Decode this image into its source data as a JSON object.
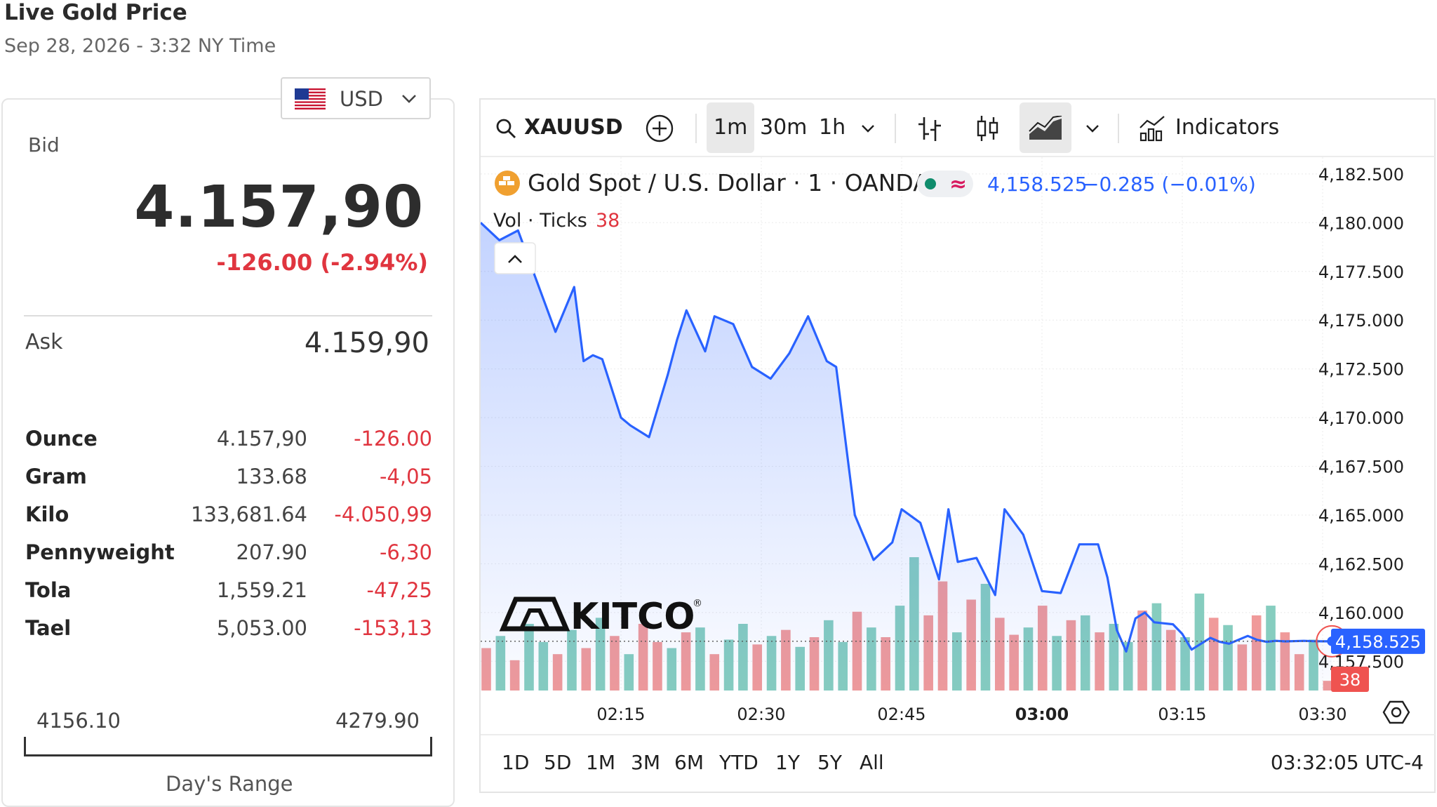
{
  "header": {
    "title": "Live Gold Price",
    "subtitle": "Sep 28, 2026 - 3:32 NY Time"
  },
  "currency": {
    "code": "USD",
    "flag_icon": "us-flag-icon"
  },
  "quote": {
    "bid_label": "Bid",
    "bid": "4.157,90",
    "change": "-126.00 (-2.94%)",
    "ask_label": "Ask",
    "ask": "4.159,90"
  },
  "units": [
    {
      "name": "Ounce",
      "price": "4.157,90",
      "change": "-126.00"
    },
    {
      "name": "Gram",
      "price": "133.68",
      "change": "-4,05"
    },
    {
      "name": "Kilo",
      "price": "133,681.64",
      "change": "-4.050,99"
    },
    {
      "name": "Pennyweight",
      "price": "207.90",
      "change": "-6,30"
    },
    {
      "name": "Tola",
      "price": "1,559.21",
      "change": "-47,25"
    },
    {
      "name": "Tael",
      "price": "5,053.00",
      "change": "-153,13"
    }
  ],
  "days_range": {
    "low": "4156.10",
    "high": "4279.90",
    "label": "Day's Range"
  },
  "toolbar": {
    "symbol": "XAUUSD",
    "intervals": [
      "1m",
      "30m",
      "1h"
    ],
    "active_interval": "1m",
    "indicators_label": "Indicators"
  },
  "legend": {
    "instrument": "Gold Spot / U.S. Dollar · 1 · OANDA",
    "last": "4,158.525",
    "change": "−0.285 (−0.01%)",
    "vol_label": "Vol · Ticks",
    "vol_value": "38"
  },
  "watermark": "KITCO",
  "bottom_bar": {
    "ranges": [
      "1D",
      "5D",
      "1M",
      "3M",
      "6M",
      "YTD",
      "1Y",
      "5Y",
      "All"
    ],
    "clock": "03:32:05 UTC-4"
  },
  "colors": {
    "up": "#86cdbf",
    "down": "#f09a9a",
    "line": "#2962ff",
    "negative": "#e0353f"
  },
  "chart_data": {
    "type": "line",
    "ylim": [
      4156.0,
      4183.0
    ],
    "y_ticks": [
      "4,182.500",
      "4,180.000",
      "4,177.500",
      "4,175.000",
      "4,172.500",
      "4,170.000",
      "4,167.500",
      "4,165.000",
      "4,162.500",
      "4,160.000",
      "4,157.500"
    ],
    "y_tick_values": [
      4182.5,
      4180.0,
      4177.5,
      4175.0,
      4172.5,
      4170.0,
      4167.5,
      4165.0,
      4162.5,
      4160.0,
      4157.5
    ],
    "x_ticks": [
      "02:15",
      "02:30",
      "02:45",
      "03:00",
      "03:15",
      "03:30"
    ],
    "x_tick_minutes": [
      15,
      30,
      45,
      60,
      75,
      90
    ],
    "last_price_label": "4,158.525",
    "last_price": 4158.525,
    "volume_label": "38",
    "x": [
      0,
      2,
      4,
      6,
      8,
      10,
      11,
      12,
      13,
      15,
      16,
      18,
      20,
      21,
      22,
      24,
      25,
      27,
      29,
      31,
      33,
      35,
      37,
      38,
      40,
      42,
      44,
      45,
      47,
      49,
      50,
      51,
      53,
      55,
      56,
      58,
      60,
      62,
      64,
      66,
      67,
      68,
      69,
      70,
      71,
      72,
      74,
      75,
      76,
      78,
      79,
      80,
      82,
      83,
      84,
      85,
      86,
      88,
      89,
      90,
      91
    ],
    "series": [
      {
        "values": [
          4180.0,
          4179.1,
          4179.6,
          4177.0,
          4174.4,
          4176.7,
          4172.9,
          4173.2,
          4173.0,
          4170.0,
          4169.6,
          4169.0,
          4172.2,
          4174.0,
          4175.5,
          4173.4,
          4175.2,
          4174.8,
          4172.6,
          4172.0,
          4173.3,
          4175.2,
          4172.9,
          4172.6,
          4165.0,
          4162.7,
          4163.6,
          4165.3,
          4164.6,
          4161.7,
          4165.3,
          4162.6,
          4162.8,
          4160.9,
          4165.3,
          4164.0,
          4161.1,
          4161.0,
          4163.5,
          4163.5,
          4161.8,
          4159.1,
          4158.0,
          4159.7,
          4160.0,
          4159.5,
          4159.4,
          4158.9,
          4158.1,
          4158.7,
          4158.5,
          4158.4,
          4158.8,
          4158.6,
          4158.5,
          4158.55,
          4158.52,
          4158.55,
          4158.53,
          4158.525,
          4158.525
        ]
      }
    ],
    "volume": [
      35,
      45,
      25,
      55,
      40,
      30,
      50,
      35,
      60,
      45,
      30,
      55,
      40,
      35,
      48,
      52,
      30,
      42,
      55,
      38,
      45,
      50,
      36,
      44,
      58,
      40,
      65,
      52,
      44,
      70,
      110,
      62,
      90,
      48,
      75,
      88,
      60,
      46,
      52,
      70,
      45,
      58,
      62,
      48,
      55,
      40,
      66,
      72,
      50,
      44,
      80,
      60,
      54,
      38,
      62,
      70,
      48,
      30,
      42,
      8,
      4
    ],
    "volume_up": [
      false,
      true,
      false,
      true,
      true,
      false,
      true,
      false,
      true,
      false,
      true,
      false,
      false,
      true,
      false,
      true,
      false,
      true,
      true,
      false,
      true,
      false,
      true,
      false,
      true,
      true,
      false,
      true,
      false,
      true,
      true,
      false,
      false,
      true,
      false,
      true,
      false,
      false,
      true,
      false,
      true,
      false,
      true,
      false,
      true,
      true,
      false,
      true,
      false,
      true,
      true,
      false,
      true,
      false,
      false,
      true,
      false,
      false,
      true,
      false,
      false
    ]
  }
}
